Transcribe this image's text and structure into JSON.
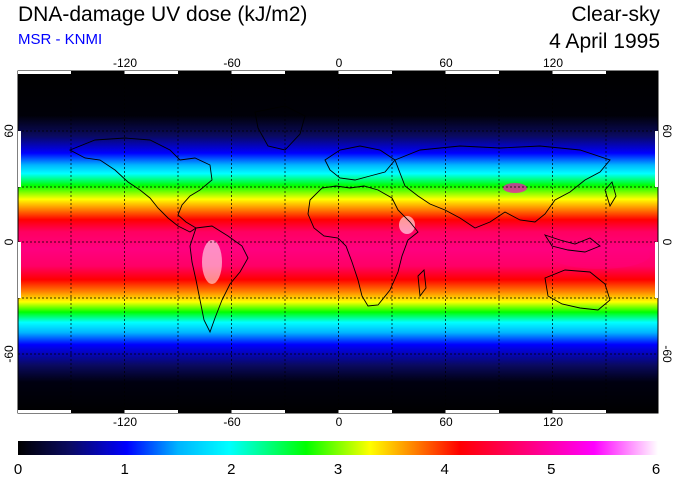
{
  "header": {
    "title": "DNA-damage UV dose (kJ/m2)",
    "subtitle": "MSR - KNMI",
    "condition": "Clear-sky",
    "date": "4 April 1995"
  },
  "colors": {
    "subtitle": "#0000ff",
    "colorbar_stops": [
      "#000000",
      "#0a0a60",
      "#0000ff",
      "#00b4ff",
      "#00ffff",
      "#00ff00",
      "#ffff00",
      "#ff8000",
      "#ff0000",
      "#ff0080",
      "#ff00ff",
      "#ffffff"
    ]
  },
  "map": {
    "projection": "equirectangular",
    "lon_ticks": [
      "-120",
      "-60",
      "0",
      "60",
      "120"
    ],
    "lat_ticks": [
      "60",
      "0",
      "-60"
    ],
    "graticule": "dotted, 30 degree spacing"
  },
  "colorbar": {
    "ticks": [
      "0",
      "1",
      "2",
      "3",
      "4",
      "5",
      "6"
    ]
  }
}
